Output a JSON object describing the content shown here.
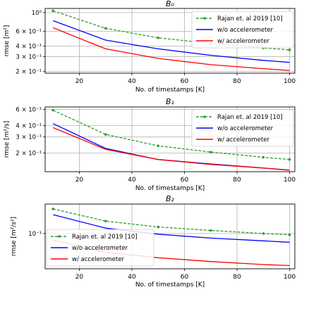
{
  "chart_data": [
    {
      "type": "line",
      "title": "B₀",
      "xlabel": "No. of timestamps [K]",
      "ylabel": "rmse [m²]",
      "yscale": "log",
      "xlim": [
        7,
        102
      ],
      "ylim": [
        0.19,
        1.12
      ],
      "xticks": [
        20,
        40,
        60,
        80,
        100
      ],
      "yticks": [
        {
          "value": 0.2,
          "label": "2 × 10⁻¹"
        },
        {
          "value": 0.3,
          "label": "3 × 10⁻¹"
        },
        {
          "value": 0.4,
          "label": "4 × 10⁻¹"
        },
        {
          "value": 0.6,
          "label": "6 × 10⁻¹"
        },
        {
          "value": 1.0,
          "label": "10⁰"
        }
      ],
      "grid": true,
      "legend": "upper-right",
      "series": [
        {
          "name": "Rajan et. al 2019 [10]",
          "color": "#2ca02c",
          "style": "dashed-dot-markers",
          "x": [
            10,
            30,
            50,
            70,
            90,
            100
          ],
          "y": [
            1.05,
            0.65,
            0.5,
            0.43,
            0.38,
            0.36
          ]
        },
        {
          "name": "w/o accelerometer",
          "color": "#0000ff",
          "style": "solid",
          "x": [
            10,
            30,
            50,
            70,
            90,
            100
          ],
          "y": [
            0.8,
            0.47,
            0.37,
            0.31,
            0.27,
            0.255
          ]
        },
        {
          "name": "w/ accelerometer",
          "color": "#ff0000",
          "style": "solid",
          "x": [
            10,
            30,
            50,
            70,
            90,
            100
          ],
          "y": [
            0.66,
            0.37,
            0.285,
            0.24,
            0.215,
            0.205
          ]
        }
      ]
    },
    {
      "type": "line",
      "title": "B₁",
      "xlabel": "No. of timestamps [K]",
      "ylabel": "rmse [m²/s]",
      "yscale": "log",
      "xlim": [
        7,
        102
      ],
      "ylim": [
        0.125,
        0.64
      ],
      "xticks": [
        20,
        40,
        60,
        80,
        100
      ],
      "yticks": [
        {
          "value": 0.2,
          "label": "2 × 10⁻¹"
        },
        {
          "value": 0.3,
          "label": "3 × 10⁻¹"
        },
        {
          "value": 0.4,
          "label": "4 × 10⁻¹"
        },
        {
          "value": 0.6,
          "label": "6 × 10⁻¹"
        }
      ],
      "grid": true,
      "legend": "upper-right",
      "series": [
        {
          "name": "Rajan et. al 2019 [10]",
          "color": "#2ca02c",
          "style": "dashed-dot-markers",
          "x": [
            10,
            30,
            50,
            70,
            90,
            100
          ],
          "y": [
            0.59,
            0.32,
            0.24,
            0.205,
            0.18,
            0.17
          ]
        },
        {
          "name": "w/o accelerometer",
          "color": "#0000ff",
          "style": "solid",
          "x": [
            10,
            30,
            50,
            70,
            90,
            100
          ],
          "y": [
            0.42,
            0.225,
            0.17,
            0.152,
            0.137,
            0.13
          ]
        },
        {
          "name": "w/ accelerometer",
          "color": "#ff0000",
          "style": "solid",
          "x": [
            10,
            30,
            50,
            70,
            90,
            100
          ],
          "y": [
            0.38,
            0.22,
            0.17,
            0.15,
            0.137,
            0.13
          ]
        }
      ]
    },
    {
      "type": "line",
      "title": "B₂",
      "xlabel": "No. of timestamps [K]",
      "ylabel": "rmse [m²/s²]",
      "yscale": "log",
      "xlim": [
        7,
        102
      ],
      "ylim": [
        0.057,
        0.16
      ],
      "xticks": [
        20,
        40,
        60,
        80,
        100
      ],
      "yticks": [
        {
          "value": 0.1,
          "label": "10⁻¹"
        }
      ],
      "grid": true,
      "legend": "left",
      "series": [
        {
          "name": "Rajan et. al 2019 [10]",
          "color": "#2ca02c",
          "style": "dashed-dot-markers",
          "x": [
            10,
            30,
            50,
            70,
            90,
            100
          ],
          "y": [
            0.148,
            0.122,
            0.111,
            0.105,
            0.1,
            0.098
          ]
        },
        {
          "name": "w/o accelerometer",
          "color": "#0000ff",
          "style": "solid",
          "x": [
            10,
            30,
            50,
            70,
            90,
            100
          ],
          "y": [
            0.135,
            0.109,
            0.099,
            0.093,
            0.089,
            0.087
          ]
        },
        {
          "name": "w/ accelerometer",
          "color": "#ff0000",
          "style": "solid",
          "x": [
            10,
            30,
            50,
            70,
            90,
            100
          ],
          "y": [
            0.09,
            0.074,
            0.068,
            0.064,
            0.061,
            0.06
          ]
        }
      ]
    }
  ]
}
